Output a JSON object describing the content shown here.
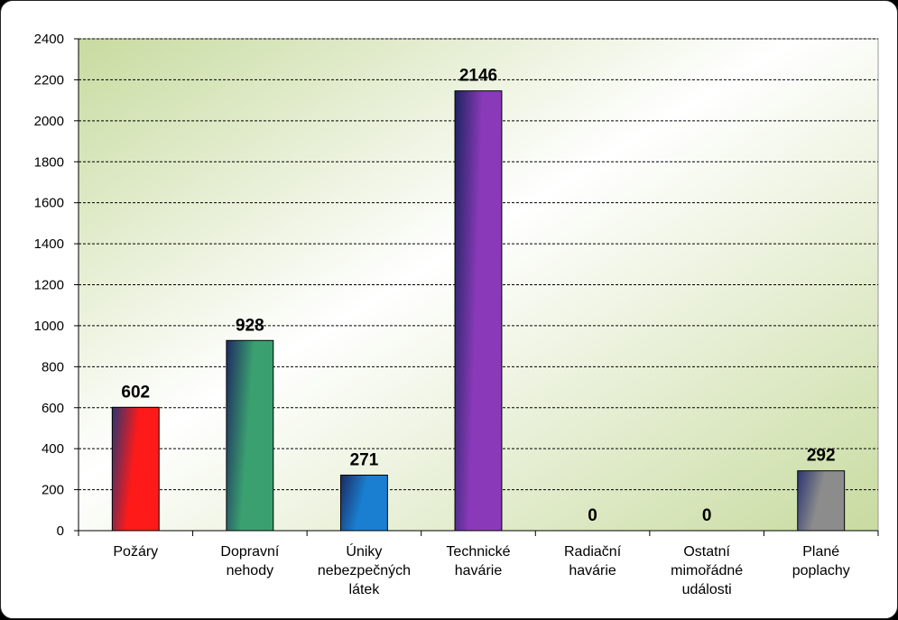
{
  "chart_data": {
    "type": "bar",
    "title": "",
    "xlabel": "",
    "ylabel": "",
    "ylim": [
      0,
      2400
    ],
    "yticks": [
      0,
      200,
      400,
      600,
      800,
      1000,
      1200,
      1400,
      1600,
      1800,
      2000,
      2200,
      2400
    ],
    "grid": true,
    "legend": "none",
    "categories": [
      [
        "Požáry"
      ],
      [
        "Dopravní",
        "nehody"
      ],
      [
        "Úniky",
        "nebezpečných",
        "látek"
      ],
      [
        "Technické",
        "havárie"
      ],
      [
        "Radiační",
        "havárie"
      ],
      [
        "Ostatní",
        "mimořádné",
        "události"
      ],
      [
        "Plané",
        "poplachy"
      ]
    ],
    "values": [
      602,
      928,
      271,
      2146,
      0,
      0,
      292
    ],
    "data_labels": [
      "602",
      "928",
      "271",
      "2146",
      "0",
      "0",
      "292"
    ],
    "bar_colors": [
      [
        "#ff1a1a",
        "#2a3570"
      ],
      [
        "#3aa070",
        "#1e2a60"
      ],
      [
        "#1a7fd0",
        "#1c2a60"
      ],
      [
        "#8a3ab8",
        "#1c2460"
      ],
      [
        "#888888",
        "#333333"
      ],
      [
        "#888888",
        "#333333"
      ],
      [
        "#8c8c8c",
        "#2a3570"
      ]
    ],
    "plot_background": [
      "#c8dba0",
      "#ffffff"
    ]
  }
}
